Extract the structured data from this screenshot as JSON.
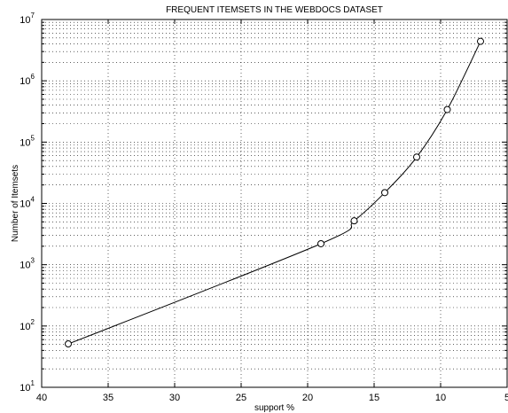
{
  "chart_data": {
    "type": "line",
    "title": "FREQUENT ITEMSETS IN THE WEBDOCS DATASET",
    "xlabel": "support %",
    "ylabel": "Number of Itemsets",
    "x_scale": "linear",
    "y_scale": "log",
    "xlim": [
      40,
      5
    ],
    "ylim": [
      10,
      10000000
    ],
    "x_reversed": true,
    "grid": true,
    "legend": "none",
    "x_ticks": [
      "40",
      "35",
      "30",
      "25",
      "20",
      "15",
      "10",
      "5"
    ],
    "x_tick_values": [
      40,
      35,
      30,
      25,
      20,
      15,
      10,
      5
    ],
    "y_ticks": [
      {
        "base": "10",
        "exp": "1"
      },
      {
        "base": "10",
        "exp": "2"
      },
      {
        "base": "10",
        "exp": "3"
      },
      {
        "base": "10",
        "exp": "4"
      },
      {
        "base": "10",
        "exp": "5"
      },
      {
        "base": "10",
        "exp": "6"
      },
      {
        "base": "10",
        "exp": "7"
      }
    ],
    "series": [
      {
        "marker": "circle",
        "color": "#000000",
        "x": [
          38,
          19,
          16.5,
          14.2,
          11.8,
          9.5,
          7
        ],
        "y": [
          51,
          2200,
          5200,
          15000,
          57000,
          340000,
          4400000
        ]
      }
    ]
  }
}
